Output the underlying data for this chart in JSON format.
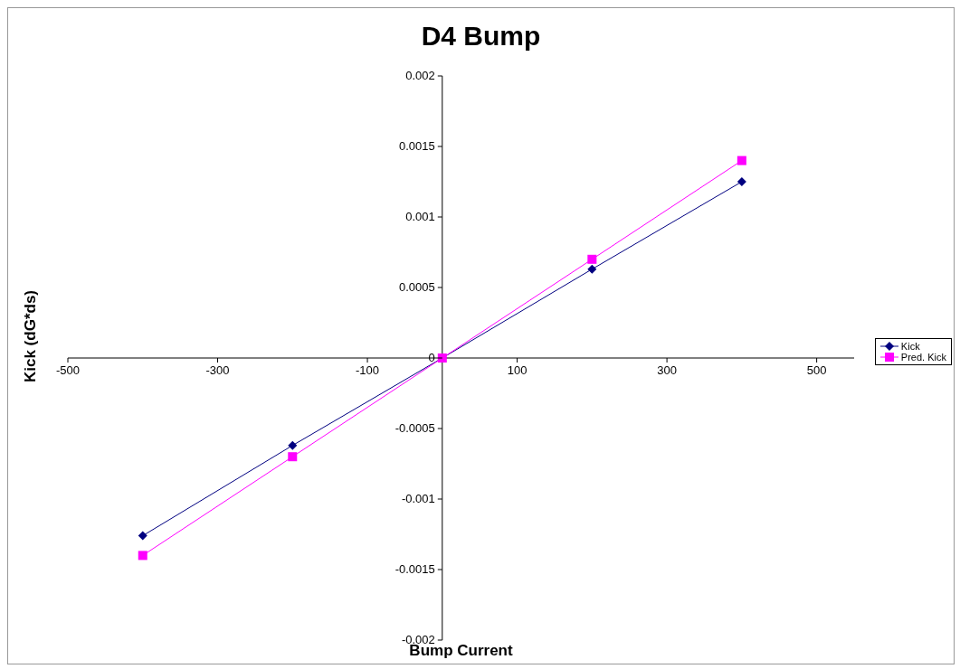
{
  "chart_data": {
    "type": "line",
    "title": "D4 Bump",
    "xlabel": "Bump Current",
    "ylabel": "Kick (dG*ds)",
    "x": [
      -400,
      -200,
      0,
      200,
      400
    ],
    "series": [
      {
        "name": "Kick",
        "color": "#000080",
        "values": [
          -0.00126,
          -0.00062,
          0,
          0.00063,
          0.00125
        ],
        "marker": "diamond"
      },
      {
        "name": "Pred. Kick",
        "color": "#ff00ff",
        "values": [
          -0.0014,
          -0.0007,
          0,
          0.0007,
          0.0014
        ],
        "marker": "square"
      }
    ],
    "xlim": [
      -500,
      550
    ],
    "xticks": [
      -500,
      -300,
      -100,
      100,
      300,
      500
    ],
    "ylim": [
      -0.002,
      0.002
    ],
    "yticks": [
      -0.002,
      -0.0015,
      -0.001,
      -0.0005,
      0,
      0.0005,
      0.001,
      0.0015,
      0.002
    ],
    "grid": false,
    "legend": "right",
    "line_style": "solid"
  }
}
